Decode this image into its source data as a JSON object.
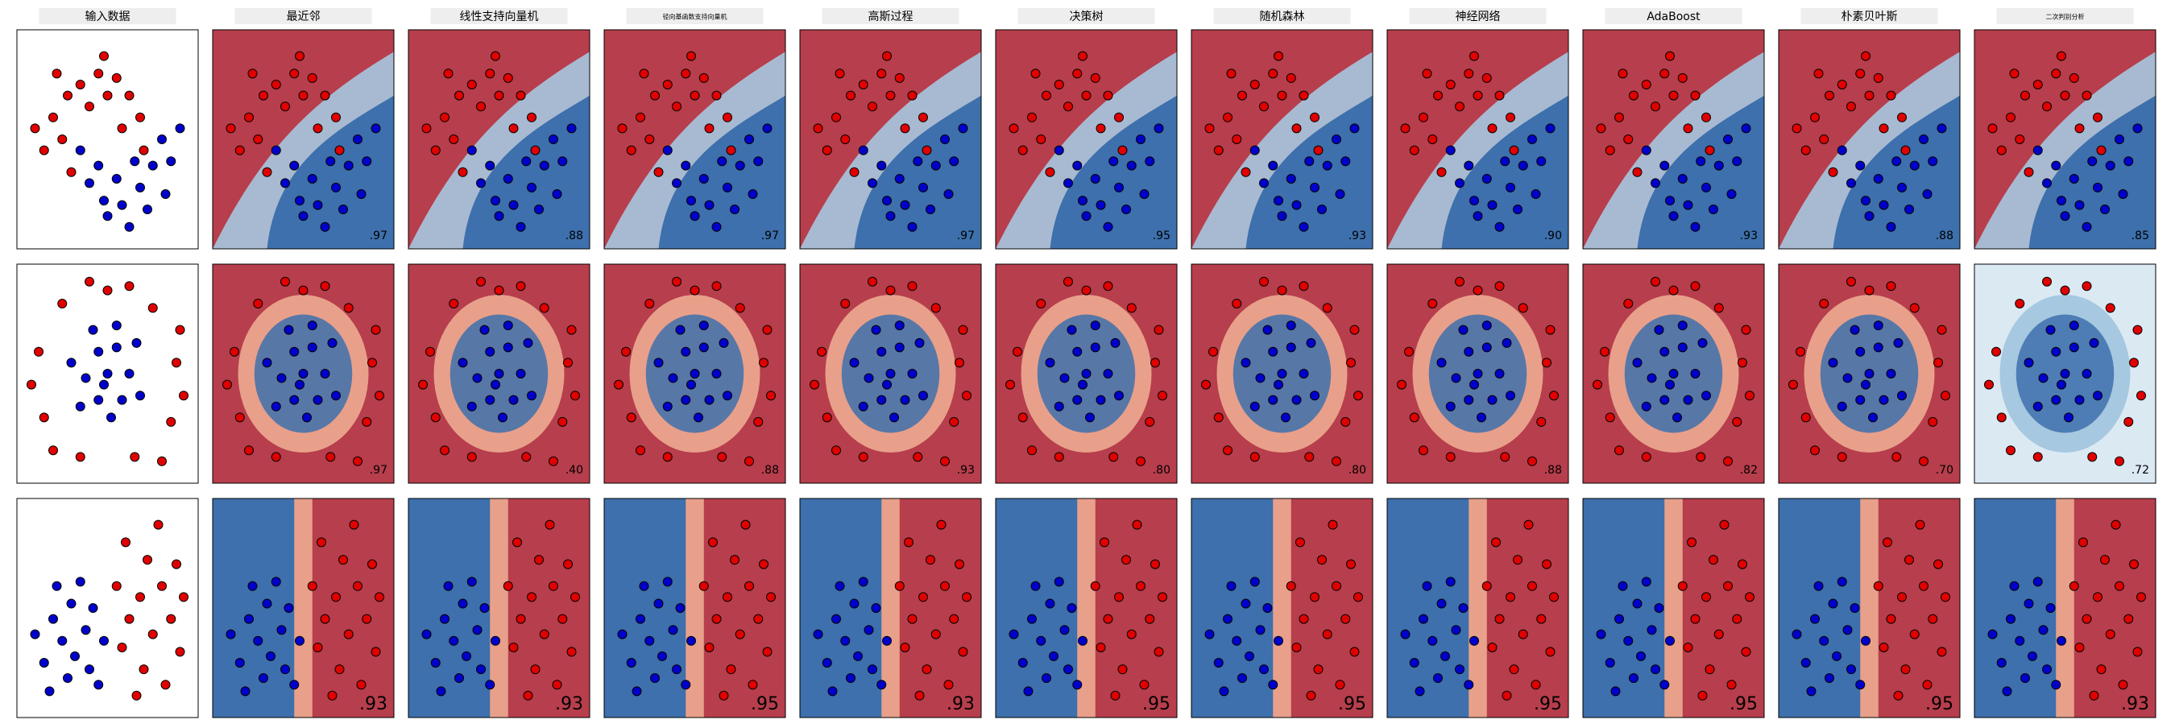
{
  "columns": [
    "输入数据",
    "最近邻",
    "线性支持向量机",
    "径向基函数支持向量机",
    "高斯过程",
    "决策树",
    "随机森林",
    "神经网络",
    "AdaBoost",
    "朴素贝叶斯",
    "二次判别分析"
  ],
  "rows": [
    {
      "scores": [
        ".97",
        ".88",
        ".97",
        ".97",
        ".95",
        ".93",
        ".90",
        ".93",
        ".88",
        ".85"
      ]
    },
    {
      "scores": [
        ".97",
        ".40",
        ".88",
        ".93",
        ".80",
        ".80",
        ".88",
        ".82",
        ".70",
        ".72"
      ]
    },
    {
      "scores": [
        ".93",
        ".93",
        ".95",
        ".93",
        ".95",
        ".95",
        ".95",
        ".95",
        ".95",
        ".93"
      ]
    }
  ],
  "datasets": [
    {
      "points": [
        [
          0.15,
          0.55,
          0
        ],
        [
          0.2,
          0.4,
          0
        ],
        [
          0.28,
          0.3,
          0
        ],
        [
          0.35,
          0.25,
          0
        ],
        [
          0.45,
          0.2,
          0
        ],
        [
          0.55,
          0.22,
          0
        ],
        [
          0.62,
          0.3,
          0
        ],
        [
          0.68,
          0.4,
          0
        ],
        [
          0.25,
          0.5,
          0
        ],
        [
          0.4,
          0.35,
          0
        ],
        [
          0.5,
          0.3,
          0
        ],
        [
          0.3,
          0.65,
          0
        ],
        [
          0.58,
          0.45,
          0
        ],
        [
          0.1,
          0.45,
          0
        ],
        [
          0.7,
          0.55,
          0
        ],
        [
          0.22,
          0.2,
          0
        ],
        [
          0.48,
          0.12,
          0
        ],
        [
          0.35,
          0.55,
          1
        ],
        [
          0.4,
          0.7,
          1
        ],
        [
          0.48,
          0.78,
          1
        ],
        [
          0.58,
          0.8,
          1
        ],
        [
          0.68,
          0.72,
          1
        ],
        [
          0.75,
          0.62,
          1
        ],
        [
          0.8,
          0.5,
          1
        ],
        [
          0.85,
          0.6,
          1
        ],
        [
          0.45,
          0.62,
          1
        ],
        [
          0.55,
          0.68,
          1
        ],
        [
          0.65,
          0.6,
          1
        ],
        [
          0.72,
          0.82,
          1
        ],
        [
          0.9,
          0.45,
          1
        ],
        [
          0.5,
          0.85,
          1
        ],
        [
          0.62,
          0.9,
          1
        ],
        [
          0.82,
          0.75,
          1
        ]
      ]
    },
    {
      "points": [
        [
          0.5,
          0.12,
          0
        ],
        [
          0.75,
          0.2,
          0
        ],
        [
          0.88,
          0.45,
          0
        ],
        [
          0.85,
          0.72,
          0
        ],
        [
          0.65,
          0.88,
          0
        ],
        [
          0.35,
          0.88,
          0
        ],
        [
          0.15,
          0.7,
          0
        ],
        [
          0.12,
          0.4,
          0
        ],
        [
          0.25,
          0.18,
          0
        ],
        [
          0.62,
          0.1,
          0
        ],
        [
          0.92,
          0.6,
          0
        ],
        [
          0.2,
          0.85,
          0
        ],
        [
          0.8,
          0.9,
          0
        ],
        [
          0.08,
          0.55,
          0
        ],
        [
          0.4,
          0.08,
          0
        ],
        [
          0.9,
          0.3,
          0
        ],
        [
          0.45,
          0.4,
          1
        ],
        [
          0.55,
          0.38,
          1
        ],
        [
          0.62,
          0.5,
          1
        ],
        [
          0.58,
          0.62,
          1
        ],
        [
          0.45,
          0.62,
          1
        ],
        [
          0.38,
          0.52,
          1
        ],
        [
          0.5,
          0.5,
          1
        ],
        [
          0.42,
          0.3,
          1
        ],
        [
          0.66,
          0.36,
          1
        ],
        [
          0.68,
          0.6,
          1
        ],
        [
          0.35,
          0.65,
          1
        ],
        [
          0.52,
          0.7,
          1
        ],
        [
          0.3,
          0.45,
          1
        ],
        [
          0.55,
          0.28,
          1
        ],
        [
          0.48,
          0.55,
          1
        ]
      ]
    },
    {
      "points": [
        [
          0.6,
          0.2,
          0
        ],
        [
          0.72,
          0.28,
          0
        ],
        [
          0.8,
          0.4,
          0
        ],
        [
          0.68,
          0.45,
          0
        ],
        [
          0.85,
          0.55,
          0
        ],
        [
          0.75,
          0.62,
          0
        ],
        [
          0.62,
          0.55,
          0
        ],
        [
          0.9,
          0.7,
          0
        ],
        [
          0.7,
          0.78,
          0
        ],
        [
          0.82,
          0.85,
          0
        ],
        [
          0.58,
          0.68,
          0
        ],
        [
          0.88,
          0.3,
          0
        ],
        [
          0.66,
          0.9,
          0
        ],
        [
          0.78,
          0.12,
          0
        ],
        [
          0.55,
          0.4,
          0
        ],
        [
          0.92,
          0.45,
          0
        ],
        [
          0.2,
          0.55,
          1
        ],
        [
          0.3,
          0.48,
          1
        ],
        [
          0.25,
          0.65,
          1
        ],
        [
          0.38,
          0.6,
          1
        ],
        [
          0.15,
          0.75,
          1
        ],
        [
          0.32,
          0.72,
          1
        ],
        [
          0.42,
          0.5,
          1
        ],
        [
          0.28,
          0.82,
          1
        ],
        [
          0.1,
          0.62,
          1
        ],
        [
          0.4,
          0.78,
          1
        ],
        [
          0.35,
          0.38,
          1
        ],
        [
          0.48,
          0.65,
          1
        ],
        [
          0.22,
          0.4,
          1
        ],
        [
          0.18,
          0.88,
          1
        ],
        [
          0.45,
          0.85,
          1
        ]
      ]
    }
  ]
}
